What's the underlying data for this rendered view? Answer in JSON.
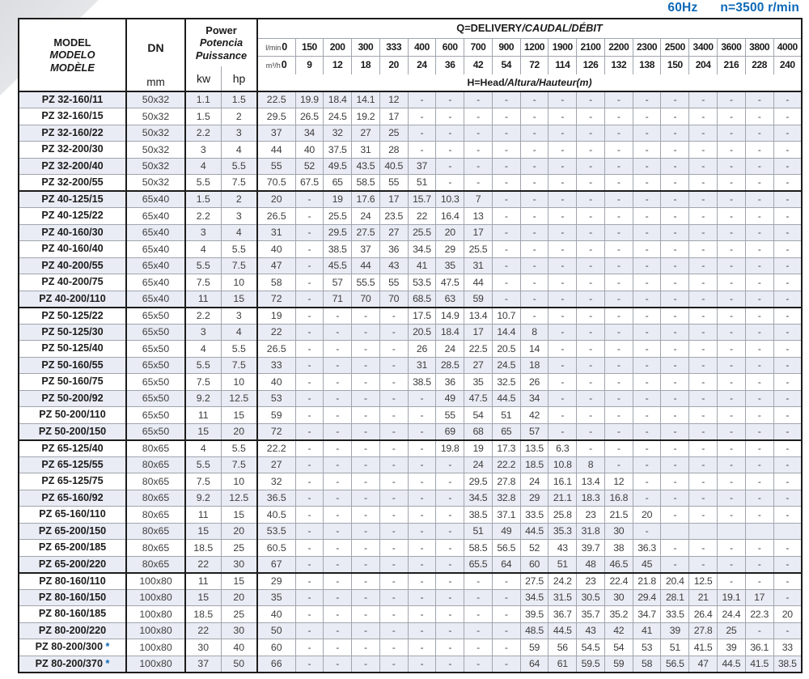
{
  "page": {
    "frequency": "60Hz",
    "speed": "n=3500 r/min"
  },
  "header": {
    "model_lines": [
      "MODEL",
      "MODELO",
      "MODÈLE"
    ],
    "dn_label": "DN",
    "dn_unit": "mm",
    "power_lines": [
      "Power",
      "Potencia",
      "Puissance"
    ],
    "kw_label": "kw",
    "hp_label": "hp",
    "q_title_main": "Q=DELIVERY",
    "q_title_rest": "/CAUDAL/DÉBIT",
    "h_title_main": "H=Head",
    "h_title_rest": "/Altura/Hauteur(m)",
    "lmin_unit": "l/min",
    "m3h_unit": "m³/h",
    "lmin_values": [
      "0",
      "150",
      "200",
      "300",
      "333",
      "400",
      "600",
      "700",
      "900",
      "1200",
      "1900",
      "2100",
      "2200",
      "2300",
      "2500",
      "3400",
      "3600",
      "3800",
      "4000"
    ],
    "m3h_values": [
      "0",
      "9",
      "12",
      "18",
      "20",
      "24",
      "36",
      "42",
      "54",
      "72",
      "114",
      "126",
      "132",
      "138",
      "150",
      "204",
      "216",
      "228",
      "240"
    ]
  },
  "rows": [
    {
      "model": "PZ 32-160/11",
      "star": false,
      "dn": "50x32",
      "kw": "1.1",
      "hp": "1.5",
      "heads": [
        "22.5",
        "19.9",
        "18.4",
        "14.1",
        "12",
        "-",
        "-",
        "-",
        "-",
        "-",
        "-",
        "-",
        "-",
        "-",
        "-",
        "-",
        "-",
        "-",
        "-"
      ]
    },
    {
      "model": "PZ 32-160/15",
      "star": false,
      "dn": "50x32",
      "kw": "1.5",
      "hp": "2",
      "heads": [
        "29.5",
        "26.5",
        "24.5",
        "19.2",
        "17",
        "-",
        "-",
        "-",
        "-",
        "-",
        "-",
        "-",
        "-",
        "-",
        "-",
        "-",
        "-",
        "-",
        "-"
      ]
    },
    {
      "model": "PZ 32-160/22",
      "star": false,
      "dn": "50x32",
      "kw": "2.2",
      "hp": "3",
      "heads": [
        "37",
        "34",
        "32",
        "27",
        "25",
        "-",
        "-",
        "-",
        "-",
        "-",
        "-",
        "-",
        "-",
        "-",
        "-",
        "-",
        "-",
        "-",
        "-"
      ]
    },
    {
      "model": "PZ 32-200/30",
      "star": false,
      "dn": "50x32",
      "kw": "3",
      "hp": "4",
      "heads": [
        "44",
        "40",
        "37.5",
        "31",
        "28",
        "-",
        "-",
        "-",
        "-",
        "-",
        "-",
        "-",
        "-",
        "-",
        "-",
        "-",
        "-",
        "-",
        "-"
      ]
    },
    {
      "model": "PZ 32-200/40",
      "star": false,
      "dn": "50x32",
      "kw": "4",
      "hp": "5.5",
      "heads": [
        "55",
        "52",
        "49.5",
        "43.5",
        "40.5",
        "37",
        "-",
        "-",
        "-",
        "-",
        "-",
        "-",
        "-",
        "-",
        "-",
        "-",
        "-",
        "-",
        "-"
      ]
    },
    {
      "model": "PZ 32-200/55",
      "star": false,
      "dn": "50x32",
      "kw": "5.5",
      "hp": "7.5",
      "heads": [
        "70.5",
        "67.5",
        "65",
        "58.5",
        "55",
        "51",
        "-",
        "-",
        "-",
        "-",
        "-",
        "-",
        "-",
        "-",
        "-",
        "-",
        "-",
        "-",
        "-"
      ]
    },
    {
      "model": "PZ 40-125/15",
      "star": false,
      "dn": "65x40",
      "kw": "1.5",
      "hp": "2",
      "heads": [
        "20",
        "-",
        "19",
        "17.6",
        "17",
        "15.7",
        "10.3",
        "7",
        "-",
        "-",
        "-",
        "-",
        "-",
        "-",
        "-",
        "-",
        "-",
        "-",
        "-"
      ]
    },
    {
      "model": "PZ 40-125/22",
      "star": false,
      "dn": "65x40",
      "kw": "2.2",
      "hp": "3",
      "heads": [
        "26.5",
        "-",
        "25.5",
        "24",
        "23.5",
        "22",
        "16.4",
        "13",
        "-",
        "-",
        "-",
        "-",
        "-",
        "-",
        "-",
        "-",
        "-",
        "-",
        "-"
      ]
    },
    {
      "model": "PZ 40-160/30",
      "star": false,
      "dn": "65x40",
      "kw": "3",
      "hp": "4",
      "heads": [
        "31",
        "-",
        "29.5",
        "27.5",
        "27",
        "25.5",
        "20",
        "17",
        "-",
        "-",
        "-",
        "-",
        "-",
        "-",
        "-",
        "-",
        "-",
        "-",
        "-"
      ]
    },
    {
      "model": "PZ 40-160/40",
      "star": false,
      "dn": "65x40",
      "kw": "4",
      "hp": "5.5",
      "heads": [
        "40",
        "-",
        "38.5",
        "37",
        "36",
        "34.5",
        "29",
        "25.5",
        "-",
        "-",
        "-",
        "-",
        "-",
        "-",
        "-",
        "-",
        "-",
        "-",
        "-"
      ]
    },
    {
      "model": "PZ 40-200/55",
      "star": false,
      "dn": "65x40",
      "kw": "5.5",
      "hp": "7.5",
      "heads": [
        "47",
        "-",
        "45.5",
        "44",
        "43",
        "41",
        "35",
        "31",
        "-",
        "-",
        "-",
        "-",
        "-",
        "-",
        "-",
        "-",
        "-",
        "-",
        "-"
      ]
    },
    {
      "model": "PZ 40-200/75",
      "star": false,
      "dn": "65x40",
      "kw": "7.5",
      "hp": "10",
      "heads": [
        "58",
        "-",
        "57",
        "55.5",
        "55",
        "53.5",
        "47.5",
        "44",
        "-",
        "-",
        "-",
        "-",
        "-",
        "-",
        "-",
        "-",
        "-",
        "-",
        "-"
      ]
    },
    {
      "model": "PZ 40-200/110",
      "star": false,
      "dn": "65x40",
      "kw": "11",
      "hp": "15",
      "heads": [
        "72",
        "-",
        "71",
        "70",
        "70",
        "68.5",
        "63",
        "59",
        "-",
        "-",
        "-",
        "-",
        "-",
        "-",
        "-",
        "-",
        "-",
        "-",
        "-"
      ]
    },
    {
      "model": "PZ 50-125/22",
      "star": false,
      "dn": "65x50",
      "kw": "2.2",
      "hp": "3",
      "heads": [
        "19",
        "-",
        "-",
        "-",
        "-",
        "17.5",
        "14.9",
        "13.4",
        "10.7",
        "-",
        "-",
        "-",
        "-",
        "-",
        "-",
        "-",
        "-",
        "-",
        "-"
      ]
    },
    {
      "model": "PZ 50-125/30",
      "star": false,
      "dn": "65x50",
      "kw": "3",
      "hp": "4",
      "heads": [
        "22",
        "-",
        "-",
        "-",
        "-",
        "20.5",
        "18.4",
        "17",
        "14.4",
        "8",
        "-",
        "-",
        "-",
        "-",
        "-",
        "-",
        "-",
        "-",
        "-"
      ]
    },
    {
      "model": "PZ 50-125/40",
      "star": false,
      "dn": "65x50",
      "kw": "4",
      "hp": "5.5",
      "heads": [
        "26.5",
        "-",
        "-",
        "-",
        "-",
        "26",
        "24",
        "22.5",
        "20.5",
        "14",
        "-",
        "-",
        "-",
        "-",
        "-",
        "-",
        "-",
        "-",
        "-"
      ]
    },
    {
      "model": "PZ 50-160/55",
      "star": false,
      "dn": "65x50",
      "kw": "5.5",
      "hp": "7.5",
      "heads": [
        "33",
        "-",
        "-",
        "-",
        "-",
        "31",
        "28.5",
        "27",
        "24.5",
        "18",
        "-",
        "-",
        "-",
        "-",
        "-",
        "-",
        "-",
        "-",
        "-"
      ]
    },
    {
      "model": "PZ 50-160/75",
      "star": false,
      "dn": "65x50",
      "kw": "7.5",
      "hp": "10",
      "heads": [
        "40",
        "-",
        "-",
        "-",
        "-",
        "38.5",
        "36",
        "35",
        "32.5",
        "26",
        "-",
        "-",
        "-",
        "-",
        "-",
        "-",
        "-",
        "-",
        "-"
      ]
    },
    {
      "model": "PZ 50-200/92",
      "star": false,
      "dn": "65x50",
      "kw": "9.2",
      "hp": "12.5",
      "heads": [
        "53",
        "-",
        "-",
        "-",
        "-",
        "-",
        "49",
        "47.5",
        "44.5",
        "34",
        "-",
        "-",
        "-",
        "-",
        "-",
        "-",
        "-",
        "-",
        "-"
      ]
    },
    {
      "model": "PZ 50-200/110",
      "star": false,
      "dn": "65x50",
      "kw": "11",
      "hp": "15",
      "heads": [
        "59",
        "-",
        "-",
        "-",
        "-",
        "-",
        "55",
        "54",
        "51",
        "42",
        "-",
        "-",
        "-",
        "-",
        "-",
        "-",
        "-",
        "-",
        "-"
      ]
    },
    {
      "model": "PZ 50-200/150",
      "star": false,
      "dn": "65x50",
      "kw": "15",
      "hp": "20",
      "heads": [
        "72",
        "-",
        "-",
        "-",
        "-",
        "-",
        "69",
        "68",
        "65",
        "57",
        "-",
        "-",
        "-",
        "-",
        "-",
        "-",
        "-",
        "-",
        "-"
      ]
    },
    {
      "model": "PZ 65-125/40",
      "star": false,
      "dn": "80x65",
      "kw": "4",
      "hp": "5.5",
      "heads": [
        "22.2",
        "-",
        "-",
        "-",
        "-",
        "-",
        "19.8",
        "19",
        "17.3",
        "13.5",
        "6.3",
        "-",
        "-",
        "-",
        "-",
        "-",
        "-",
        "-",
        "-"
      ]
    },
    {
      "model": "PZ 65-125/55",
      "star": false,
      "dn": "80x65",
      "kw": "5.5",
      "hp": "7.5",
      "heads": [
        "27",
        "-",
        "-",
        "-",
        "-",
        "-",
        "-",
        "24",
        "22.2",
        "18.5",
        "10.8",
        "8",
        "-",
        "-",
        "-",
        "-",
        "-",
        "-",
        "-"
      ]
    },
    {
      "model": "PZ 65-125/75",
      "star": false,
      "dn": "80x65",
      "kw": "7.5",
      "hp": "10",
      "heads": [
        "32",
        "-",
        "-",
        "-",
        "-",
        "-",
        "-",
        "29.5",
        "27.8",
        "24",
        "16.1",
        "13.4",
        "12",
        "-",
        "-",
        "-",
        "-",
        "-",
        "-"
      ]
    },
    {
      "model": "PZ 65-160/92",
      "star": false,
      "dn": "80x65",
      "kw": "9.2",
      "hp": "12.5",
      "heads": [
        "36.5",
        "-",
        "-",
        "-",
        "-",
        "-",
        "-",
        "34.5",
        "32.8",
        "29",
        "21.1",
        "18.3",
        "16.8",
        "-",
        "-",
        "-",
        "-",
        "-",
        "-"
      ]
    },
    {
      "model": "PZ 65-160/110",
      "star": false,
      "dn": "80x65",
      "kw": "11",
      "hp": "15",
      "heads": [
        "40.5",
        "-",
        "-",
        "-",
        "-",
        "-",
        "-",
        "38.5",
        "37.1",
        "33.5",
        "25.8",
        "23",
        "21.5",
        "20",
        "-",
        "-",
        "-",
        "-",
        "-"
      ]
    },
    {
      "model": "PZ 65-200/150",
      "star": false,
      "dn": "80x65",
      "kw": "15",
      "hp": "20",
      "heads": [
        "53.5",
        "-",
        "-",
        "-",
        "-",
        "-",
        "-",
        "51",
        "49",
        "44.5",
        "35.3",
        "31.8",
        "30",
        "-",
        "",
        "",
        "",
        "",
        ""
      ]
    },
    {
      "model": "PZ 65-200/185",
      "star": false,
      "dn": "80x65",
      "kw": "18.5",
      "hp": "25",
      "heads": [
        "60.5",
        "-",
        "-",
        "-",
        "-",
        "-",
        "-",
        "58.5",
        "56.5",
        "52",
        "43",
        "39.7",
        "38",
        "36.3",
        "-",
        "-",
        "-",
        "-",
        "-"
      ]
    },
    {
      "model": "PZ 65-200/220",
      "star": false,
      "dn": "80x65",
      "kw": "22",
      "hp": "30",
      "heads": [
        "67",
        "-",
        "-",
        "-",
        "-",
        "-",
        "-",
        "65.5",
        "64",
        "60",
        "51",
        "48",
        "46.5",
        "45",
        "-",
        "-",
        "-",
        "-",
        "-"
      ]
    },
    {
      "model": "PZ 80-160/110",
      "star": false,
      "dn": "100x80",
      "kw": "11",
      "hp": "15",
      "heads": [
        "29",
        "-",
        "-",
        "-",
        "-",
        "-",
        "-",
        "-",
        "-",
        "27.5",
        "24.2",
        "23",
        "22.4",
        "21.8",
        "20.4",
        "12.5",
        "-",
        "-",
        "-"
      ]
    },
    {
      "model": "PZ 80-160/150",
      "star": false,
      "dn": "100x80",
      "kw": "15",
      "hp": "20",
      "heads": [
        "35",
        "-",
        "-",
        "-",
        "-",
        "-",
        "-",
        "-",
        "-",
        "34.5",
        "31.5",
        "30.5",
        "30",
        "29.4",
        "28.1",
        "21",
        "19.1",
        "17",
        "-"
      ]
    },
    {
      "model": "PZ 80-160/185",
      "star": false,
      "dn": "100x80",
      "kw": "18.5",
      "hp": "25",
      "heads": [
        "40",
        "-",
        "-",
        "-",
        "-",
        "-",
        "-",
        "-",
        "-",
        "39.5",
        "36.7",
        "35.7",
        "35.2",
        "34.7",
        "33.5",
        "26.4",
        "24.4",
        "22.3",
        "20"
      ]
    },
    {
      "model": "PZ 80-200/220",
      "star": false,
      "dn": "100x80",
      "kw": "22",
      "hp": "30",
      "heads": [
        "50",
        "-",
        "-",
        "-",
        "-",
        "-",
        "-",
        "-",
        "-",
        "48.5",
        "44.5",
        "43",
        "42",
        "41",
        "39",
        "27.8",
        "25",
        "-",
        "-"
      ]
    },
    {
      "model": "PZ 80-200/300",
      "star": true,
      "dn": "100x80",
      "kw": "30",
      "hp": "40",
      "heads": [
        "60",
        "-",
        "-",
        "-",
        "-",
        "-",
        "-",
        "-",
        "-",
        "59",
        "56",
        "54.5",
        "54",
        "53",
        "51",
        "41.5",
        "39",
        "36.1",
        "33"
      ]
    },
    {
      "model": "PZ 80-200/370",
      "star": true,
      "dn": "100x80",
      "kw": "37",
      "hp": "50",
      "heads": [
        "66",
        "-",
        "-",
        "-",
        "-",
        "-",
        "-",
        "-",
        "-",
        "64",
        "61",
        "59.5",
        "59",
        "58",
        "56.5",
        "47",
        "44.5",
        "41.5",
        "38.5"
      ]
    }
  ],
  "colors": {
    "accent_blue": "#0d68b6",
    "stripe": "#e9ecf4",
    "border_thin": "#a0a5ad",
    "border_thick": "#1c1c1c"
  }
}
